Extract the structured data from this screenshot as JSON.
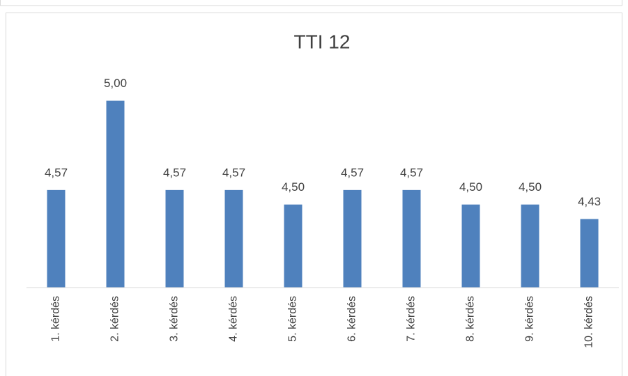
{
  "chart_data": {
    "type": "bar",
    "title": "TTI 12",
    "categories": [
      "1. kérdés",
      "2. kérdés",
      "3. kérdés",
      "4. kérdés",
      "5. kérdés",
      "6. kérdés",
      "7. kérdés",
      "8. kérdés",
      "9. kérdés",
      "10. kérdés"
    ],
    "values": [
      4.57,
      5.0,
      4.57,
      4.57,
      4.5,
      4.57,
      4.57,
      4.5,
      4.5,
      4.43
    ],
    "value_labels": [
      "4,57",
      "5,00",
      "4,57",
      "4,57",
      "4,50",
      "4,57",
      "4,57",
      "4,50",
      "4,50",
      "4,43"
    ],
    "color": "#4f81bd",
    "ylim": [
      4.1,
      5.2
    ]
  }
}
